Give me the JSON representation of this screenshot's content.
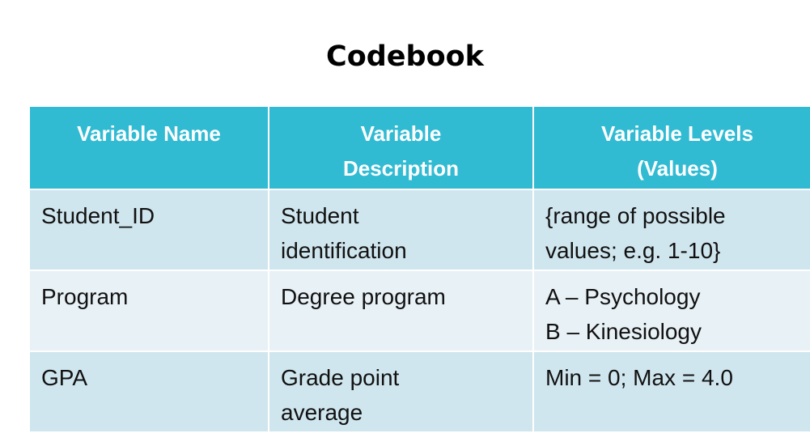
{
  "title": "Codebook",
  "colors": {
    "header_bg": "#31bbd3",
    "row_dark": "#d0e6ee",
    "row_light": "#e8f1f6"
  },
  "table": {
    "headers": [
      {
        "lines": [
          "Variable Name"
        ]
      },
      {
        "lines": [
          "Variable",
          "Description"
        ]
      },
      {
        "lines": [
          "Variable Levels",
          "(Values)"
        ]
      }
    ],
    "rows": [
      {
        "name": "Student_ID",
        "description": [
          "Student",
          "identification"
        ],
        "levels": [
          "{range of possible",
          "values; e.g. 1-10}"
        ]
      },
      {
        "name": "Program",
        "description": [
          "Degree program"
        ],
        "levels": [
          "A – Psychology",
          "B – Kinesiology"
        ]
      },
      {
        "name": "GPA",
        "description": [
          "Grade point",
          "average"
        ],
        "levels": [
          "Min = 0; Max = 4.0"
        ]
      }
    ]
  }
}
